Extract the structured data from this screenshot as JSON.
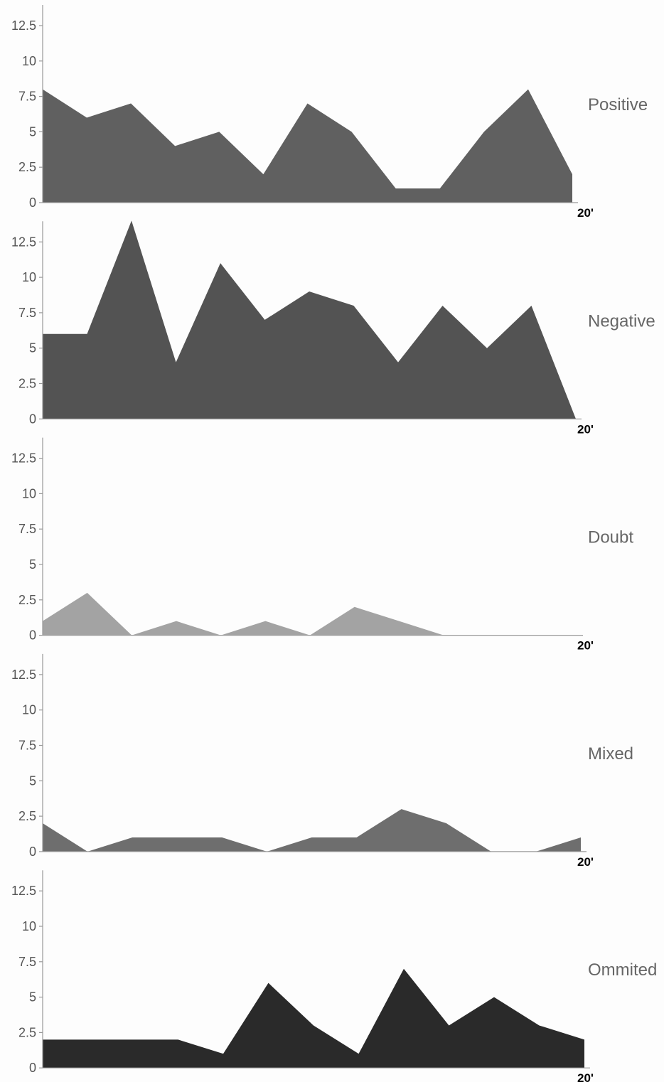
{
  "chart_data": [
    {
      "type": "area",
      "title": "Positive",
      "color": "#606060",
      "y_ticks": [
        "0",
        "2.5",
        "5",
        "7.5",
        "10",
        "12.5"
      ],
      "ylim": [
        0,
        14
      ],
      "x_end_label": "20'",
      "values": [
        8,
        6,
        7,
        4,
        5,
        2,
        7,
        5,
        1,
        1,
        5,
        8,
        2
      ]
    },
    {
      "type": "area",
      "title": "Negative",
      "color": "#535353",
      "y_ticks": [
        "0",
        "2.5",
        "5",
        "7.5",
        "10",
        "12.5"
      ],
      "ylim": [
        0,
        14
      ],
      "x_end_label": "20'",
      "values": [
        6,
        6,
        14,
        4,
        11,
        7,
        9,
        8,
        4,
        8,
        5,
        8,
        0
      ]
    },
    {
      "type": "area",
      "title": "Doubt",
      "color": "#a3a3a3",
      "y_ticks": [
        "0",
        "2.5",
        "5",
        "7.5",
        "10",
        "12.5"
      ],
      "ylim": [
        0,
        14
      ],
      "x_end_label": "20'",
      "values": [
        1,
        3,
        0,
        1,
        0,
        1,
        0,
        2,
        1,
        0,
        0,
        0,
        0
      ]
    },
    {
      "type": "area",
      "title": "Mixed",
      "color": "#6e6e6e",
      "y_ticks": [
        "0",
        "2.5",
        "5",
        "7.5",
        "10",
        "12.5"
      ],
      "ylim": [
        0,
        14
      ],
      "x_end_label": "20'",
      "values": [
        2,
        0,
        1,
        1,
        1,
        0,
        1,
        1,
        3,
        2,
        0,
        0,
        1
      ]
    },
    {
      "type": "area",
      "title": "Ommited",
      "color": "#2a2a2a",
      "y_ticks": [
        "0",
        "2.5",
        "5",
        "7.5",
        "10",
        "12.5"
      ],
      "ylim": [
        0,
        14
      ],
      "x_end_label": "20'",
      "values": [
        2,
        2,
        2,
        2,
        1,
        6,
        3,
        1,
        7,
        3,
        5,
        3,
        2
      ]
    }
  ]
}
